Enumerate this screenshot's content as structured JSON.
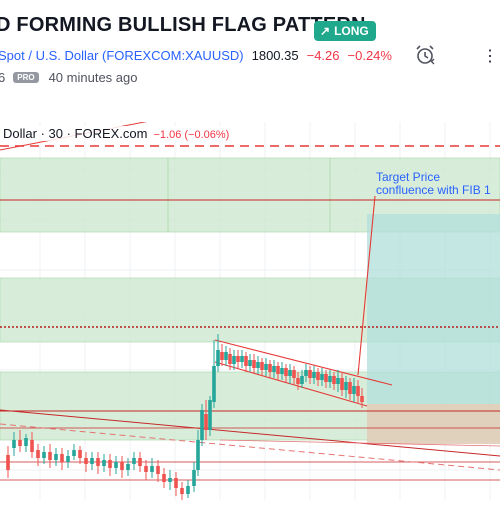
{
  "header": {
    "title": "D FORMING BULLISH FLAG PATTERN",
    "badge": "LONG",
    "symbol": "Spot / U.S. Dollar (FOREXCOM:XAUUSD)",
    "price": "1800.35",
    "change": "−4.26",
    "change_pct": "−0.24%",
    "author_fragment": "6",
    "pro_badge": "PRO",
    "time_ago": "40 minutes ago"
  },
  "chart": {
    "legend_name": "Dollar · 30 · FOREX.com",
    "legend_delta": "−1.06 (−0.06%)",
    "annotation_line1": "Target Price",
    "annotation_line2": "confluence with FIB 1",
    "colors": {
      "bull": "#26a69a",
      "bear": "#ef5350",
      "zone_green": "#c8e6c9",
      "target_teal": "#b2dfdb",
      "stop_tan": "#e0cdb8",
      "line_red": "#e53935"
    }
  }
}
